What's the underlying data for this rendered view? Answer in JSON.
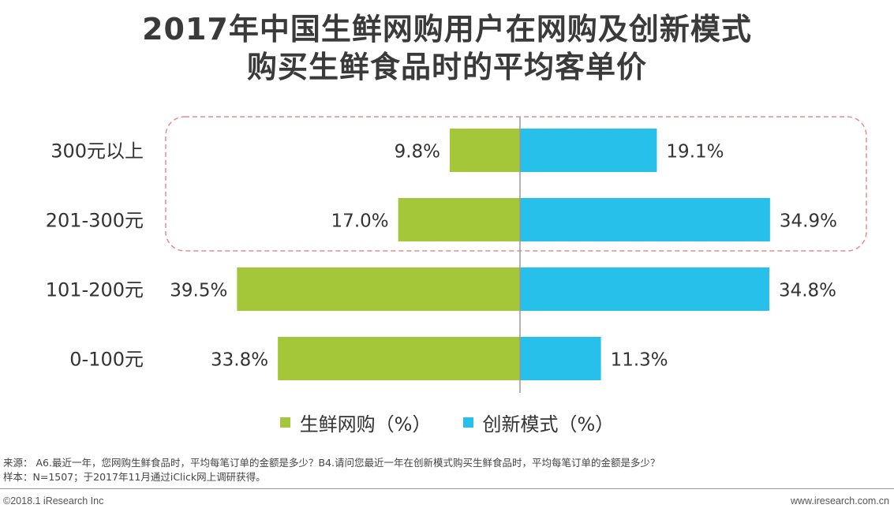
{
  "title": {
    "line1": "2017年中国生鲜网购用户在网购及创新模式",
    "line2": "购买生鲜食品时的平均客单价"
  },
  "chart_data": {
    "type": "bar",
    "orientation": "horizontal-diverging",
    "categories": [
      "300元以上",
      "201-300元",
      "101-200元",
      "0-100元"
    ],
    "series": [
      {
        "name": "生鲜网购（%）",
        "values": [
          9.8,
          17.0,
          39.5,
          33.8
        ],
        "labels": [
          "9.8%",
          "17.0%",
          "39.5%",
          "33.8%"
        ],
        "color": "#a4c639",
        "side": "left"
      },
      {
        "name": "创新模式（%）",
        "values": [
          19.1,
          34.9,
          34.8,
          11.3
        ],
        "labels": [
          "19.1%",
          "34.9%",
          "34.8%",
          "11.3%"
        ],
        "color": "#27c0ea",
        "side": "right"
      }
    ],
    "highlight": {
      "categories": [
        "300元以上",
        "201-300元"
      ],
      "style": "dashed-rounded-box",
      "color": "#e88a93"
    },
    "grid": false
  },
  "legend": {
    "item1": "生鲜网购（%）",
    "item2": "创新模式（%）"
  },
  "notes": {
    "source": "来源：  A6.最近一年，您网购生鲜食品时，平均每笔订单的金额是多少？B4.请问您最近一年在创新模式购买生鲜食品时，平均每笔订单的金额是多少？",
    "sample": "样本：N=1507；于2017年11月通过iClick网上调研获得。"
  },
  "footer": {
    "copyright": "©2018.1 iResearch Inc",
    "website": "www.iresearch.com.cn"
  }
}
